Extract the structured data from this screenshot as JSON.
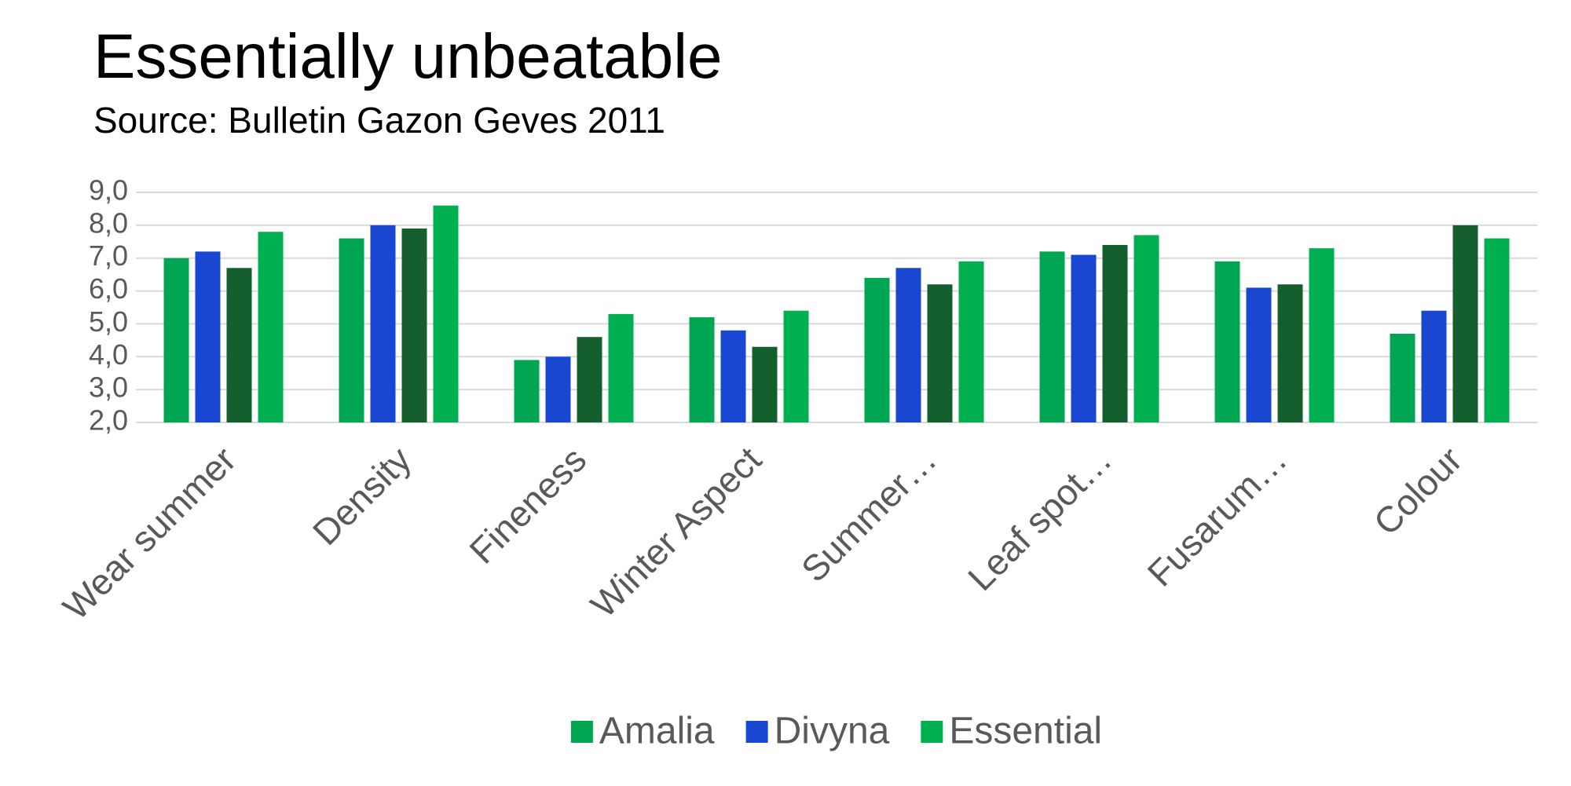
{
  "chart_data": {
    "type": "bar",
    "title": "Essentially unbeatable",
    "subtitle": "Source: Bulletin Gazon Geves 2011",
    "categories": [
      "Wear summer",
      "Density",
      "Fineness",
      "Winter Aspect",
      "Summer…",
      "Leaf spot…",
      "Fusarum…",
      "Colour"
    ],
    "series": [
      {
        "name": "Amalia",
        "color": "#00a651",
        "values": [
          7.0,
          7.6,
          3.9,
          5.2,
          6.4,
          7.2,
          6.9,
          4.7
        ]
      },
      {
        "name": "Divyna",
        "color": "#1a47d1",
        "values": [
          7.2,
          8.0,
          4.0,
          4.8,
          6.7,
          7.1,
          6.1,
          5.4
        ]
      },
      {
        "color": "#155f2e",
        "values": [
          6.7,
          7.9,
          4.6,
          4.3,
          6.2,
          7.4,
          6.2,
          8.0
        ]
      },
      {
        "name": "Essential",
        "color": "#00b050",
        "values": [
          7.8,
          8.6,
          5.3,
          5.4,
          6.9,
          7.7,
          7.3,
          7.6
        ]
      }
    ],
    "ylim": [
      2,
      9
    ],
    "yticks": [
      {
        "value": 2,
        "label": "2,0"
      },
      {
        "value": 3,
        "label": "3,0"
      },
      {
        "value": 4,
        "label": "4,0"
      },
      {
        "value": 5,
        "label": "5,0"
      },
      {
        "value": 6,
        "label": "6,0"
      },
      {
        "value": 7,
        "label": "7,0"
      },
      {
        "value": 8,
        "label": "8,0"
      },
      {
        "value": 9,
        "label": "9,0"
      }
    ],
    "grid": true,
    "legend": "bottom"
  }
}
